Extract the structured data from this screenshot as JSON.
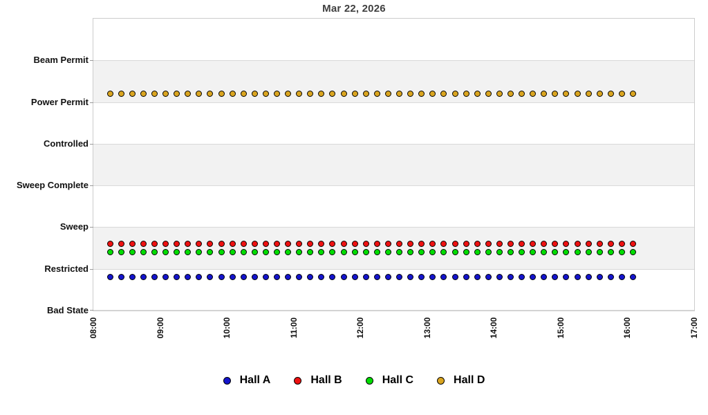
{
  "title": "Mar 22, 2026",
  "chart_data": {
    "type": "scatter",
    "title": "Mar 22, 2026",
    "x_axis": {
      "ticks": [
        "08:00",
        "09:00",
        "10:00",
        "11:00",
        "12:00",
        "13:00",
        "14:00",
        "15:00",
        "16:00",
        "17:00"
      ],
      "range_hours": [
        8,
        17
      ],
      "tick_label_rotation_deg": -90,
      "grid": false
    },
    "y_axis": {
      "categories_top_to_bottom": [
        "Beam Permit",
        "Power Permit",
        "Controlled",
        "Sweep Complete",
        "Sweep",
        "Restricted",
        "Bad State"
      ],
      "category_values": {
        "Bad State": 0,
        "Restricted": 1,
        "Sweep": 2,
        "Sweep Complete": 3,
        "Controlled": 4,
        "Power Permit": 5,
        "Beam Permit": 6
      },
      "range_units": [
        0,
        7
      ],
      "shaded_value_bands": [
        [
          1,
          2
        ],
        [
          3,
          4
        ],
        [
          5,
          6
        ]
      ],
      "grid": true
    },
    "sample_times": [
      "08:15",
      "08:25",
      "08:35",
      "08:45",
      "08:55",
      "09:05",
      "09:15",
      "09:25",
      "09:35",
      "09:45",
      "09:55",
      "10:05",
      "10:15",
      "10:25",
      "10:35",
      "10:45",
      "10:55",
      "11:05",
      "11:15",
      "11:25",
      "11:35",
      "11:45",
      "11:55",
      "12:05",
      "12:15",
      "12:25",
      "12:35",
      "12:45",
      "12:55",
      "13:05",
      "13:15",
      "13:25",
      "13:35",
      "13:45",
      "13:55",
      "14:05",
      "14:15",
      "14:25",
      "14:35",
      "14:45",
      "14:55",
      "15:05",
      "15:15",
      "15:25",
      "15:35",
      "15:45",
      "15:55",
      "16:05"
    ],
    "series": [
      {
        "name": "Hall A",
        "color": "#1414cc",
        "state": "Restricted",
        "state_value": 1,
        "marker_value_offset": -0.2,
        "plot_value": 0.8,
        "constant_over_all_sample_times": true
      },
      {
        "name": "Hall B",
        "color": "#ee1111",
        "state": "Sweep",
        "state_value": 2,
        "marker_value_offset": -0.4,
        "plot_value": 1.6,
        "constant_over_all_sample_times": true
      },
      {
        "name": "Hall C",
        "color": "#00dd00",
        "state": "Sweep",
        "state_value": 2,
        "marker_value_offset": -0.6,
        "plot_value": 1.4,
        "constant_over_all_sample_times": true
      },
      {
        "name": "Hall D",
        "color": "#daa520",
        "state": "Beam Permit",
        "state_value": 6,
        "marker_value_offset": -0.8,
        "plot_value": 5.2,
        "constant_over_all_sample_times": true
      }
    ],
    "legend": {
      "position": "bottom",
      "entries": [
        "Hall A",
        "Hall B",
        "Hall C",
        "Hall D"
      ]
    },
    "style": {
      "band_fill": "#f2f2f2",
      "plot_border": "#cccccc",
      "gridline_color": "#d9d9d9",
      "tick_color": "#999999",
      "title_color": "#3f3f3f"
    }
  }
}
